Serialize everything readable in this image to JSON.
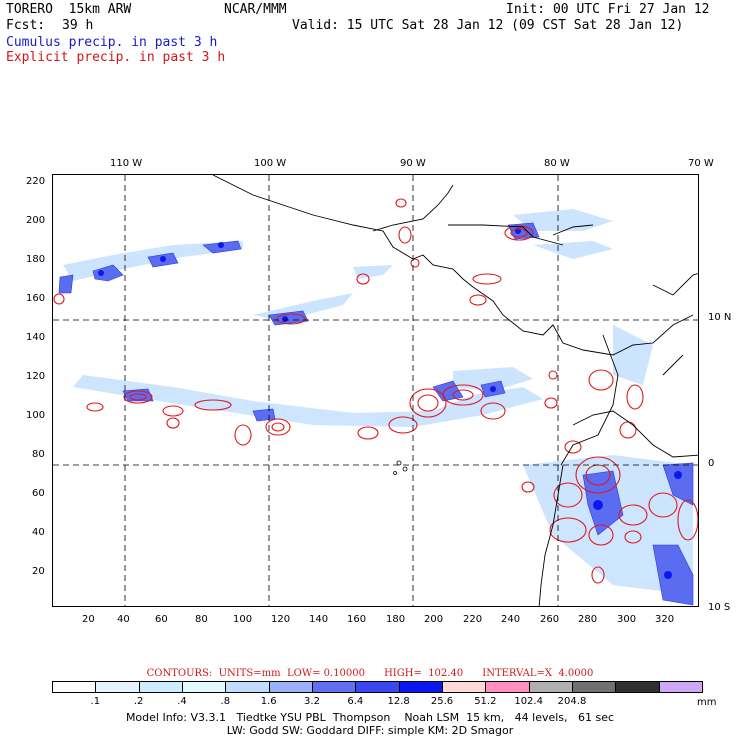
{
  "header": {
    "model": "TORERO  15km ARW",
    "org": "NCAR/MMM",
    "init": "Init: 00 UTC Fri 27 Jan 12",
    "fcst_label": "Fcst:",
    "fcst_value": "39 h",
    "valid": "Valid: 15 UTC Sat 28 Jan 12 (09 CST Sat 28 Jan 12)",
    "field1": "Cumulus precip. in past 3 h",
    "field2": "Explicit precip. in past 3 h"
  },
  "axes": {
    "top_lon": [
      "110 W",
      "100 W",
      "90 W",
      "80 W",
      "70 W"
    ],
    "right_lat": [
      "10 N",
      "0",
      "10 S"
    ],
    "left_ticks": [
      "220",
      "200",
      "180",
      "160",
      "140",
      "120",
      "100",
      "80",
      "60",
      "40",
      "20"
    ],
    "bottom_ticks": [
      "20",
      "40",
      "60",
      "80",
      "100",
      "120",
      "140",
      "160",
      "180",
      "200",
      "220",
      "240",
      "260",
      "280",
      "300",
      "320"
    ]
  },
  "contours": {
    "text": "CONTOURS:  UNITS=mm  LOW= 0.10000      HIGH=  102.40      INTERVAL=X  4.0000"
  },
  "colorbar": {
    "colors": [
      "#ffffff",
      "#e6f4ff",
      "#ccecff",
      "#e2fbff",
      "#c2dcff",
      "#9ab0f8",
      "#6070f0",
      "#3a48f0",
      "#0a18ee",
      "#ffd8d8",
      "#ff90c0",
      "#b0b0b0",
      "#707070",
      "#303030",
      "#d0a8f8"
    ],
    "labels": [
      ".1",
      ".2",
      ".4",
      ".8",
      "1.6",
      "3.2",
      "6.4",
      "12.8",
      "25.6",
      "51.2",
      "102.4",
      "204.8"
    ],
    "units": "mm"
  },
  "footer": {
    "line1": "Model Info: V3.3.1   Tiedtke YSU PBL  Thompson    Noah LSM  15 km,   44 levels,   61 sec",
    "line2": "LW: Godd SW: Goddard DIFF: simple KM: 2D Smagor"
  }
}
